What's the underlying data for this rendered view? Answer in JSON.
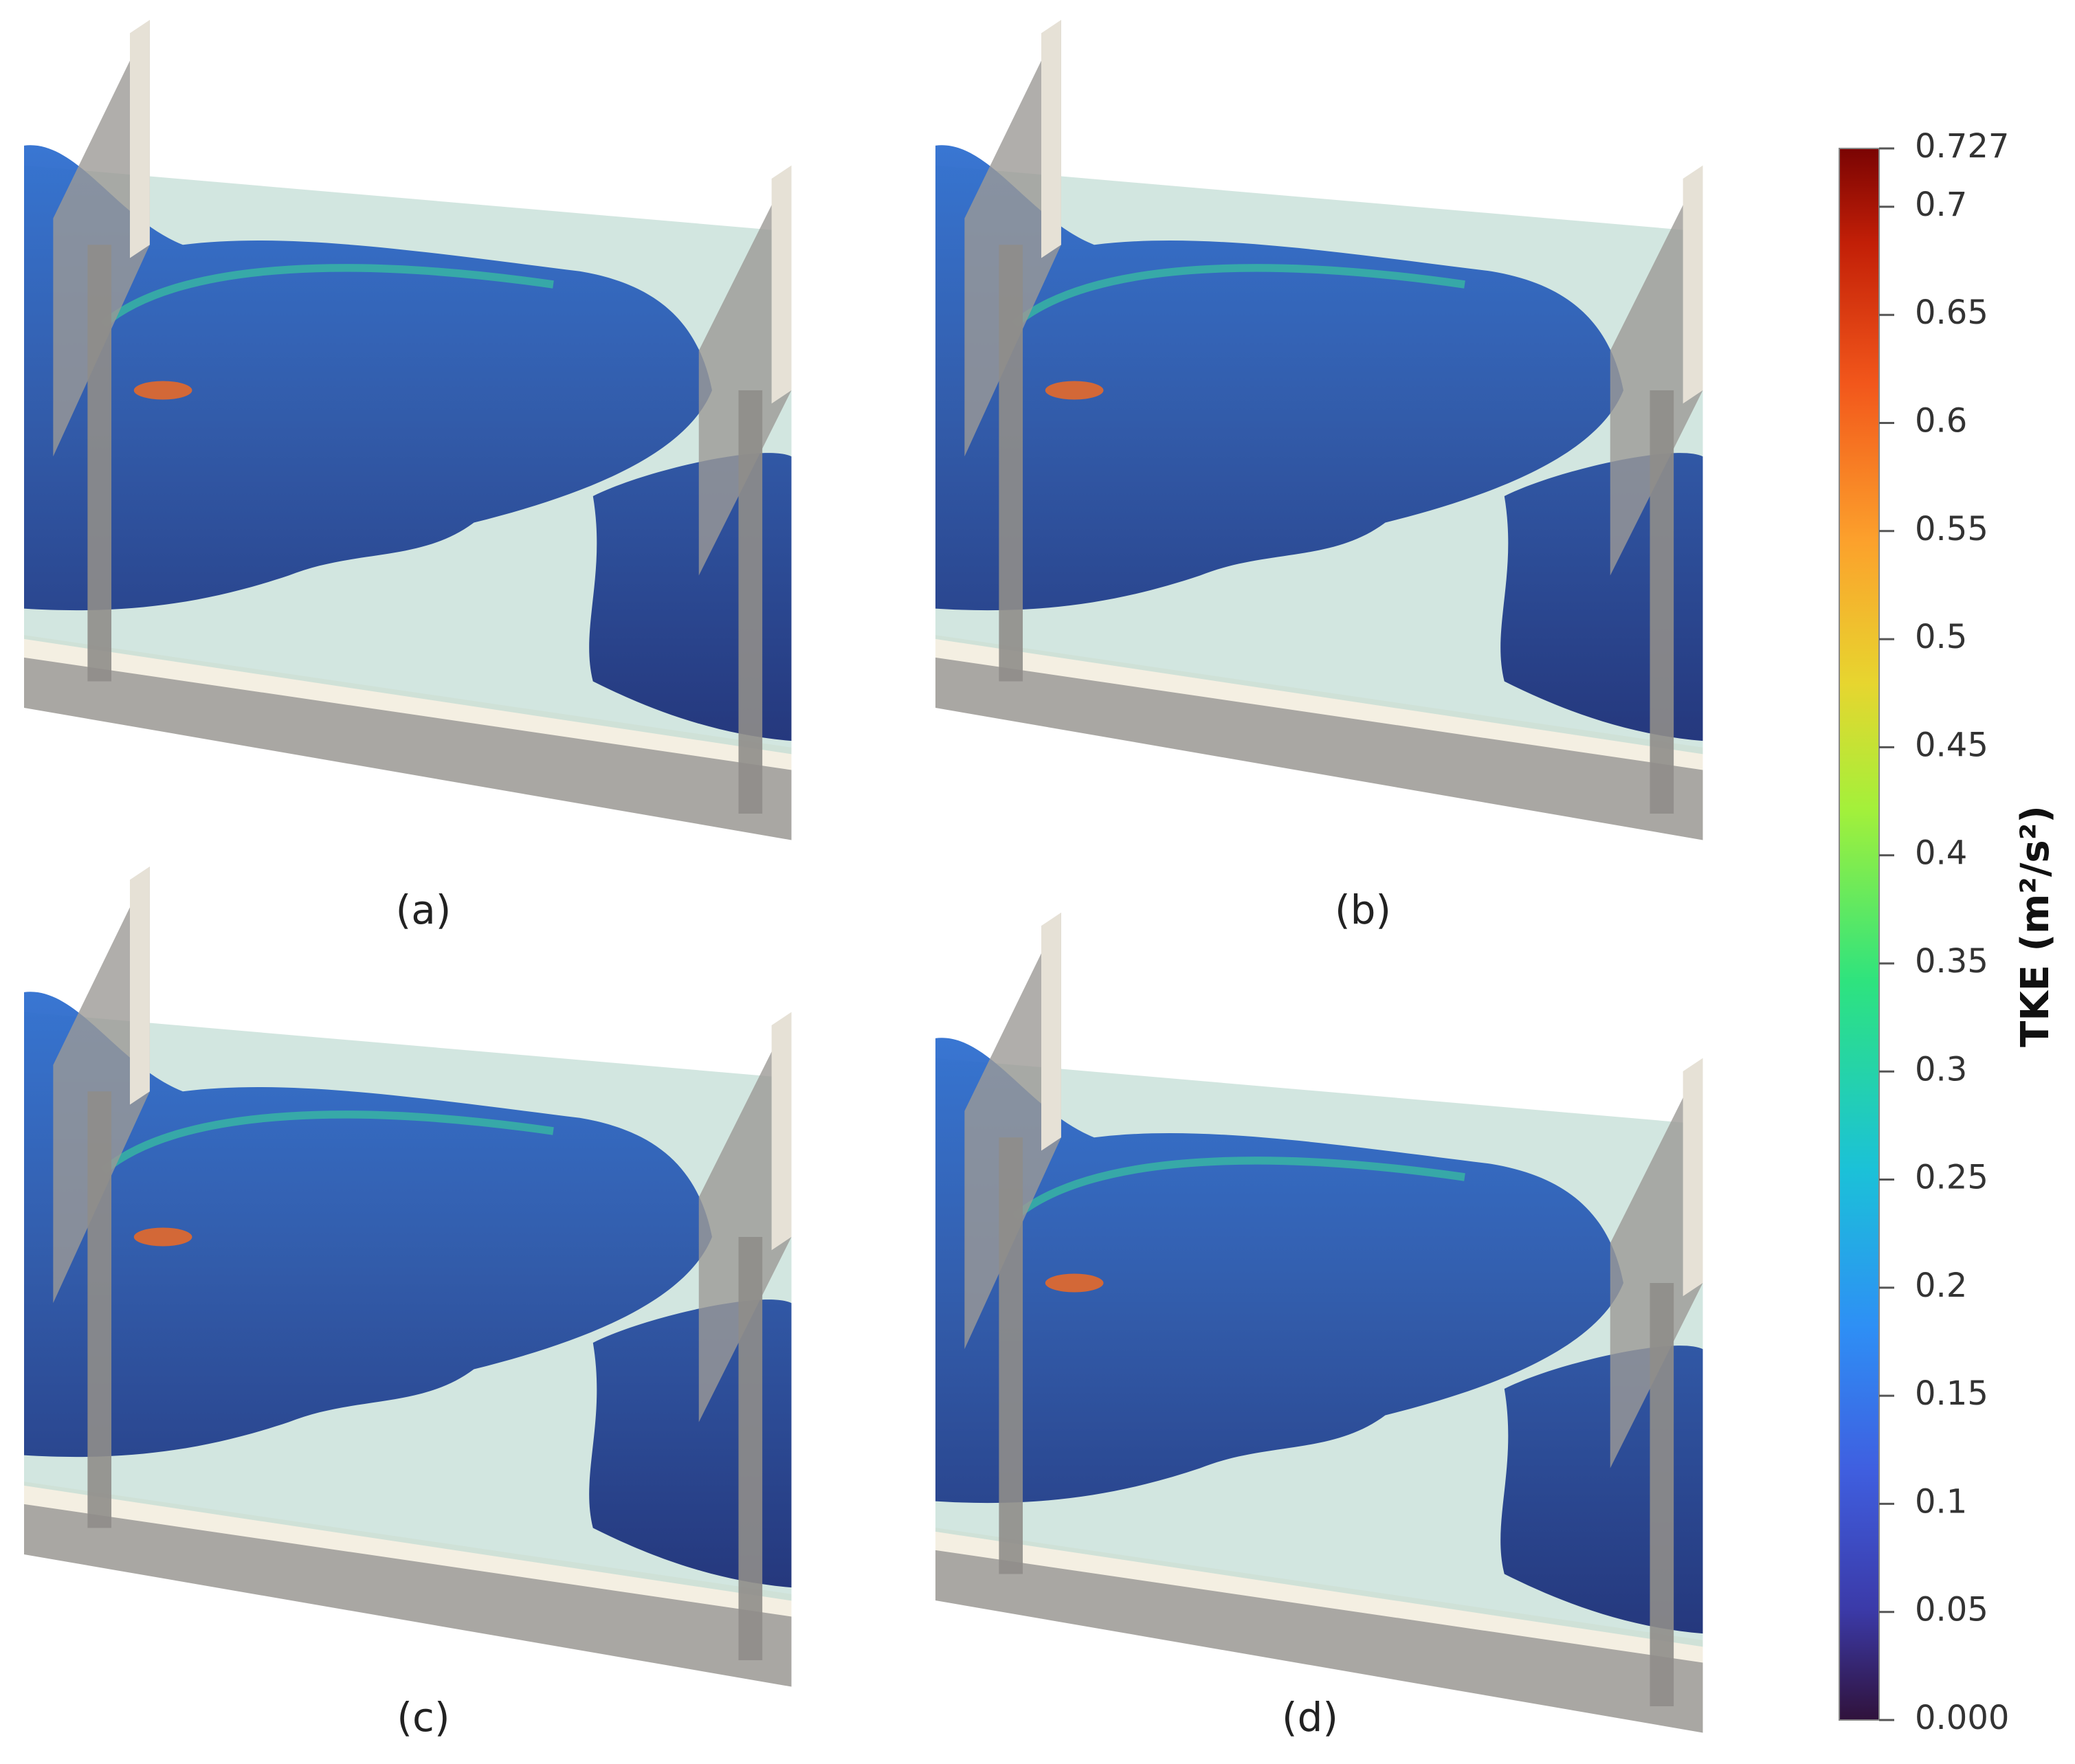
{
  "panels": [
    {
      "label": "(a)"
    },
    {
      "label": "(b)"
    },
    {
      "label": "(c)"
    },
    {
      "label": "(d)"
    }
  ],
  "colorbar": {
    "title": "TKE (m²/s²)",
    "ticks": [
      0.727,
      0.7,
      0.65,
      0.6,
      0.55,
      0.5,
      0.45,
      0.4,
      0.35,
      0.3,
      0.25,
      0.2,
      0.15,
      0.1,
      0.05,
      {
        "value": 0,
        "label": "0.000"
      }
    ]
  }
}
